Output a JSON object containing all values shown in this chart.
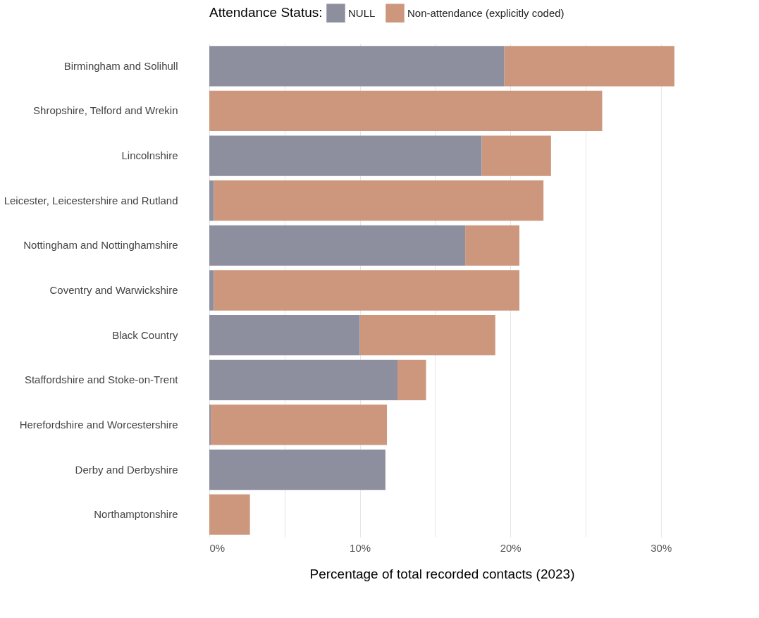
{
  "chart_data": {
    "type": "bar",
    "orientation": "horizontal",
    "stacked": true,
    "xlabel": "Percentage of total recorded contacts (2023)",
    "legend_title": "Attendance Status:",
    "legend": "top right",
    "grid": "x",
    "categories": [
      "Birmingham and Solihull",
      "Shropshire, Telford and Wrekin",
      "Lincolnshire",
      "Leicester, Leicestershire and Rutland",
      "Nottingham and Nottinghamshire",
      "Coventry and Warwickshire",
      "Black Country",
      "Staffordshire and Stoke-on-Trent",
      "Herefordshire and Worcestershire",
      "Derby and Derbyshire",
      "Northamptonshire"
    ],
    "series": [
      {
        "name": "NULL",
        "color": "#8d8f9e",
        "values": [
          19.6,
          null,
          18.1,
          0.3,
          17.0,
          0.3,
          10.0,
          12.5,
          0.1,
          11.7,
          null
        ]
      },
      {
        "name": "Non-attendance (explicitly coded)",
        "color": "#cc977c",
        "values": [
          11.3,
          26.1,
          4.6,
          21.9,
          3.6,
          20.3,
          9.0,
          1.9,
          11.7,
          null,
          2.7
        ]
      }
    ],
    "xlim": [
      0,
      30.9
    ],
    "xticks": [
      {
        "value": 0,
        "label": "0%"
      },
      {
        "value": 5,
        "label": null
      },
      {
        "value": 10,
        "label": "10%"
      },
      {
        "value": 15,
        "label": null
      },
      {
        "value": 20,
        "label": "20%"
      },
      {
        "value": 25,
        "label": null
      },
      {
        "value": 30,
        "label": "30%"
      }
    ]
  }
}
